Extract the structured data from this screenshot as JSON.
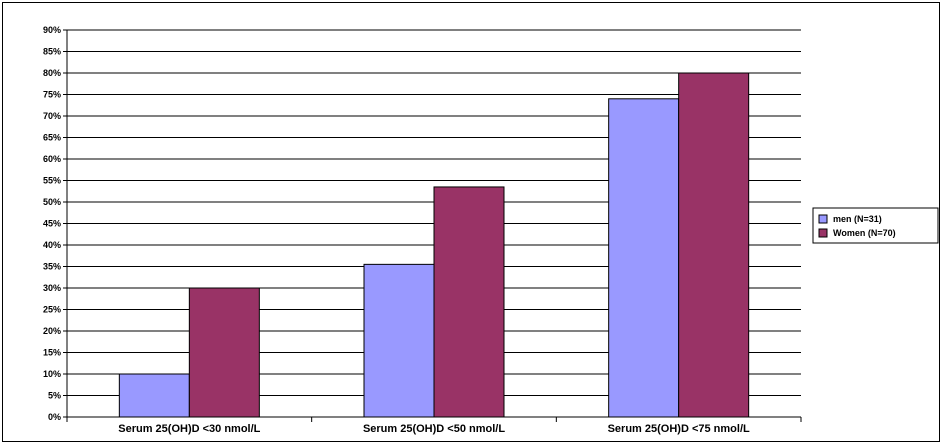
{
  "chart_data": {
    "type": "bar",
    "categories": [
      "Serum 25(OH)D <30 nmol/L",
      "Serum 25(OH)D <50 nmol/L",
      "Serum 25(OH)D <75 nmol/L"
    ],
    "series": [
      {
        "name": "men (N=31)",
        "values": [
          10,
          35.5,
          74
        ],
        "color": "#9999ff"
      },
      {
        "name": "Women (N=70)",
        "values": [
          30,
          53.5,
          80
        ],
        "color": "#993366"
      }
    ],
    "yticks": [
      "0%",
      "5%",
      "10%",
      "15%",
      "20%",
      "25%",
      "30%",
      "35%",
      "40%",
      "45%",
      "50%",
      "55%",
      "60%",
      "65%",
      "70%",
      "75%",
      "80%",
      "85%",
      "90%"
    ],
    "ylim": [
      0,
      90
    ],
    "ystep": 5,
    "grid": true,
    "legend": "right",
    "title": "",
    "xlabel": "",
    "ylabel": ""
  }
}
